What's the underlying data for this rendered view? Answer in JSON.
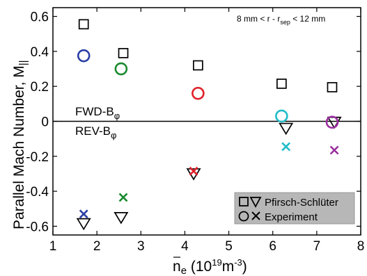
{
  "chart_data": {
    "type": "scatter",
    "xlabel_main": "n",
    "xlabel_sub": "e",
    "xlabel_rest": " (10",
    "xlabel_sup": "19",
    "xlabel_unit": "m",
    "xlabel_unit_sup": "-3",
    "xlabel_end": ")",
    "ylabel_main": "Parallel Mach Number, M",
    "ylabel_sub": "||",
    "xlim": [
      1,
      8
    ],
    "ylim": [
      -0.65,
      0.65
    ],
    "xticks": [
      "1",
      "2",
      "3",
      "4",
      "5",
      "6",
      "7",
      "8"
    ],
    "yticks": [
      "0.6",
      "0.4",
      "0.2",
      "0",
      "-0.2",
      "-0.4",
      "-0.6"
    ],
    "ytick_values": [
      0.6,
      0.4,
      0.2,
      0,
      -0.2,
      -0.4,
      -0.6
    ],
    "annotation": {
      "pre": "8 mm < r - r",
      "sub": "sep",
      "post": " < 12 mm"
    },
    "fwd_label": {
      "main": "FWD-B",
      "sub": "φ"
    },
    "rev_label": {
      "main": "REV-B",
      "sub": "φ"
    },
    "legend": [
      {
        "symbols": "squares-triangles",
        "label": "Pfirsch-Schlüter"
      },
      {
        "symbols": "circles-crosses",
        "label": "Experiment"
      }
    ],
    "grid": false,
    "legend_position": "bottom-right",
    "series": [
      {
        "marker": "square",
        "color": "#000000",
        "points": [
          [
            1.7,
            0.555
          ],
          [
            2.6,
            0.39
          ],
          [
            4.3,
            0.32
          ],
          [
            6.2,
            0.215
          ],
          [
            7.35,
            0.195
          ]
        ]
      },
      {
        "marker": "triangle-down",
        "color": "#000000",
        "points": [
          [
            1.7,
            -0.585
          ],
          [
            2.55,
            -0.55
          ],
          [
            4.2,
            -0.3
          ],
          [
            6.3,
            -0.04
          ],
          [
            7.4,
            -0.005
          ]
        ]
      },
      {
        "marker": "circle",
        "points": [
          [
            1.7,
            0.375,
            "#2b3fa6"
          ],
          [
            2.55,
            0.3,
            "#1a8a2e"
          ],
          [
            4.3,
            0.16,
            "#e0202a"
          ],
          [
            6.2,
            0.03,
            "#22bcc8"
          ],
          [
            7.35,
            -0.005,
            "#9b2ea0"
          ]
        ]
      },
      {
        "marker": "cross",
        "points": [
          [
            1.7,
            -0.53,
            "#2b3fa6"
          ],
          [
            2.6,
            -0.435,
            "#1a8a2e"
          ],
          [
            4.2,
            -0.285,
            "#e0202a"
          ],
          [
            6.3,
            -0.145,
            "#22bcc8"
          ],
          [
            7.4,
            -0.165,
            "#9b2ea0"
          ]
        ]
      }
    ]
  }
}
